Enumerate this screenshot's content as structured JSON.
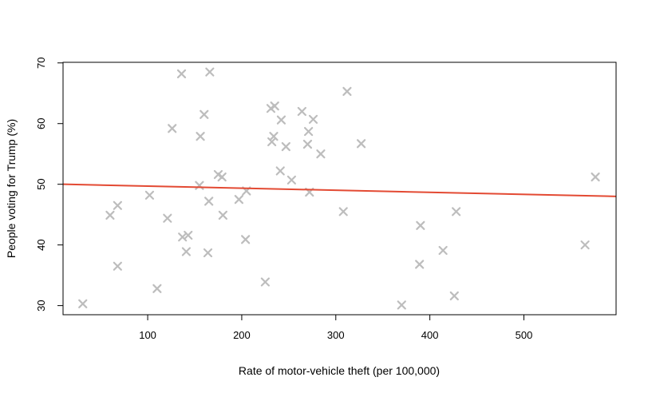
{
  "chart_data": {
    "type": "scatter",
    "title": "",
    "xlabel": "Rate of motor-vehicle theft (per 100,000)",
    "ylabel": "People voting for Trump (%)",
    "xlim": [
      10,
      598
    ],
    "ylim": [
      28.5,
      70.1
    ],
    "x_ticks": [
      100,
      200,
      300,
      400,
      500
    ],
    "y_ticks": [
      30,
      40,
      50,
      60,
      70
    ],
    "marker": "x",
    "point_color": "#bdbdbd",
    "line_color": "#e34a33",
    "regression_line": {
      "x": [
        10,
        598
      ],
      "y": [
        50.0,
        48.0
      ]
    },
    "x": [
      31,
      60,
      68,
      68,
      102,
      110,
      121,
      126,
      136,
      137,
      141,
      143,
      155,
      156,
      160,
      164,
      165,
      166,
      175,
      179,
      180,
      197,
      204,
      205,
      225,
      231,
      232,
      234,
      235,
      241,
      242,
      247,
      253,
      264,
      270,
      271,
      272,
      276,
      284,
      308,
      312,
      327,
      370,
      389,
      390,
      414,
      426,
      428,
      565,
      576
    ],
    "y": [
      30.3,
      44.9,
      46.5,
      36.5,
      48.2,
      32.8,
      44.4,
      59.2,
      68.2,
      41.3,
      38.9,
      41.6,
      49.8,
      57.9,
      61.5,
      38.7,
      47.2,
      68.5,
      51.6,
      51.2,
      44.9,
      47.5,
      40.9,
      48.9,
      33.9,
      62.5,
      57.0,
      57.9,
      62.9,
      52.2,
      60.6,
      56.2,
      50.7,
      62.0,
      56.6,
      58.7,
      48.7,
      60.7,
      55.0,
      45.5,
      65.3,
      56.7,
      30.1,
      36.8,
      43.2,
      39.1,
      31.6,
      45.5,
      40.0,
      51.2
    ]
  }
}
